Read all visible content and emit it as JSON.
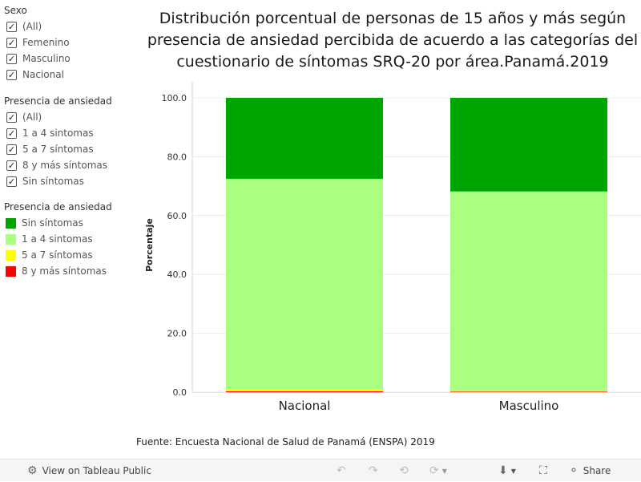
{
  "filters": {
    "sexo": {
      "title": "Sexo",
      "items": [
        {
          "label": "(All)",
          "checked": true
        },
        {
          "label": "Femenino",
          "checked": true
        },
        {
          "label": "Masculino",
          "checked": true
        },
        {
          "label": "Nacional",
          "checked": true
        }
      ]
    },
    "presencia": {
      "title": "Presencia  de ansiedad",
      "items": [
        {
          "label": "(All)",
          "checked": true
        },
        {
          "label": "1 a 4 sintomas",
          "checked": true
        },
        {
          "label": "5 a 7 síntomas",
          "checked": true
        },
        {
          "label": "8 y más síntomas",
          "checked": true
        },
        {
          "label": "Sin síntomas",
          "checked": true
        }
      ]
    }
  },
  "check_glyph": "✓",
  "legend": {
    "title": "Presencia  de ansiedad",
    "items": [
      {
        "label": "Sin síntomas",
        "color": "#00a600"
      },
      {
        "label": "1 a 4 sintomas",
        "color": "#aaff80"
      },
      {
        "label": "5 a 7 síntomas",
        "color": "#ffff00"
      },
      {
        "label": "8 y más síntomas",
        "color": "#ff0000"
      }
    ]
  },
  "chart_data": {
    "type": "bar",
    "stacked": true,
    "title_lines": [
      "Distribución porcentual de personas de 15 años y más según",
      "presencia de ansiedad percibida de acuerdo a las categorías del",
      "cuestionario de síntomas SRQ-20 por área.Panamá.2019"
    ],
    "ylabel": "Porcentaje",
    "xlabel": "",
    "ylim": [
      0,
      100
    ],
    "yticks": [
      "0.0",
      "20.0",
      "40.0",
      "60.0",
      "80.0",
      "100.0"
    ],
    "categories": [
      "Nacional",
      "Masculino"
    ],
    "series": [
      {
        "name": "8 y más síntomas",
        "color": "#ff0000",
        "values": [
          0.3,
          0.2
        ]
      },
      {
        "name": "5 a 7 síntomas",
        "color": "#ffff00",
        "values": [
          0.8,
          0.2
        ]
      },
      {
        "name": "1 a 4 sintomas",
        "color": "#aaff80",
        "values": [
          71.4,
          67.8
        ]
      },
      {
        "name": "Sin síntomas",
        "color": "#00a600",
        "values": [
          27.5,
          31.8
        ]
      }
    ]
  },
  "source": "Fuente: Encuesta Nacional de Salud de Panamá (ENSPA) 2019",
  "toolbar": {
    "view_label": "View on Tableau Public",
    "share_label": "Share",
    "icons": {
      "view": "⚙",
      "undo": "↶",
      "redo": "↷",
      "revert": "⟲",
      "refresh": "⟳",
      "download": "⬇",
      "fullscreen": "⛶",
      "share": "⚬"
    }
  }
}
